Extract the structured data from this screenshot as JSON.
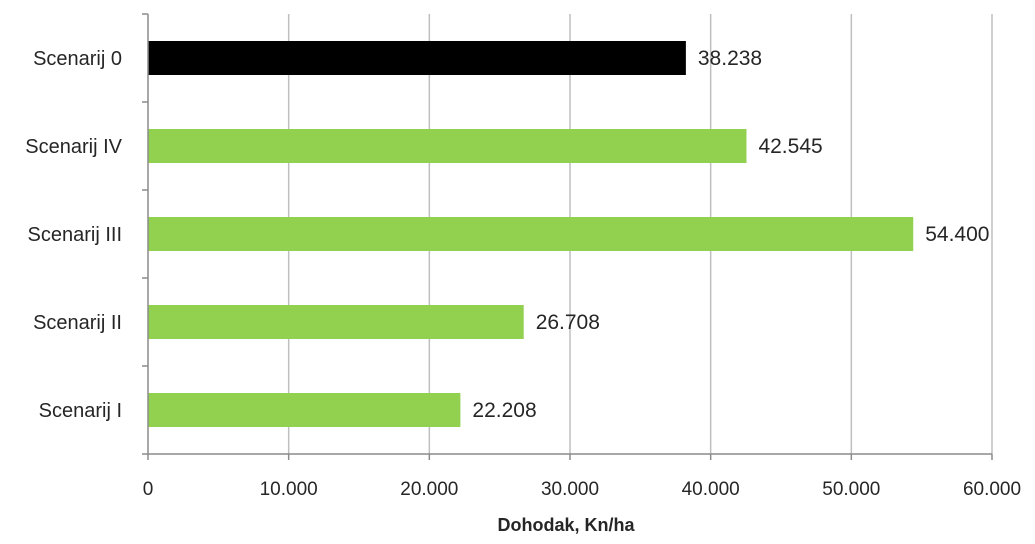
{
  "chart_data": {
    "type": "bar",
    "orientation": "horizontal",
    "title": "",
    "xlabel": "Dohodak, Kn/ha",
    "ylabel": "",
    "categories": [
      "Scenarij 0",
      "Scenarij IV",
      "Scenarij III",
      "Scenarij II",
      "Scenarij I"
    ],
    "values": [
      38238,
      42545,
      54400,
      26708,
      22208
    ],
    "value_labels": [
      "38.238",
      "42.545",
      "54.400",
      "26.708",
      "22.208"
    ],
    "bar_colors": [
      "#000000",
      "#92d050",
      "#92d050",
      "#92d050",
      "#92d050"
    ],
    "xlim": [
      0,
      60000
    ],
    "x_ticks": [
      0,
      10000,
      20000,
      30000,
      40000,
      50000,
      60000
    ],
    "x_tick_labels": [
      "0",
      "10.000",
      "20.000",
      "30.000",
      "40.000",
      "50.000",
      "60.000"
    ],
    "grid": "vertical",
    "legend": "none",
    "gridline_color": "#bfbfbf",
    "axis_color": "#8c8c8c"
  }
}
